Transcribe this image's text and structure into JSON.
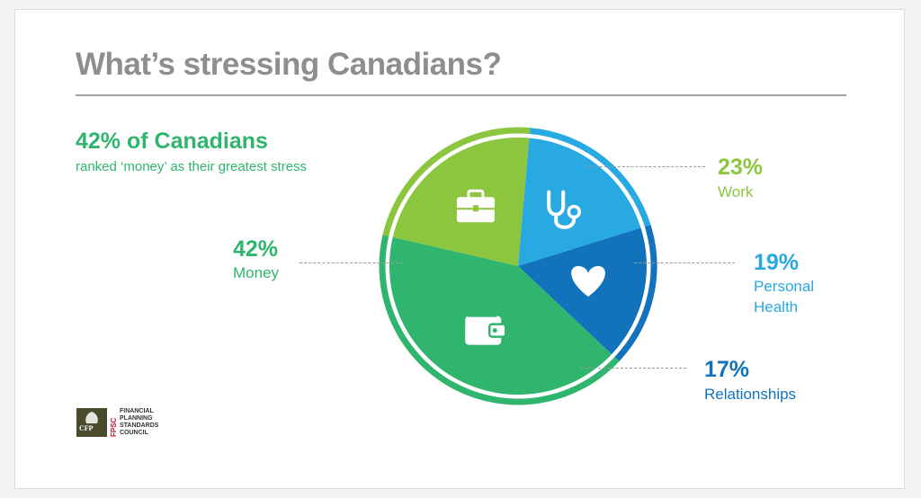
{
  "title": "What’s stressing Canadians?",
  "headline": {
    "stat": "42% of Canadians",
    "subtext": "ranked ‘money’ as their greatest stress",
    "color": "#2fb56e"
  },
  "chart_data": {
    "type": "pie",
    "title": "What’s stressing Canadians?",
    "unit": "%",
    "slices": [
      {
        "name": "Work",
        "value": 23,
        "value_label": "23%",
        "color": "#8cc63f",
        "icon": "briefcase-icon"
      },
      {
        "name": "Personal Health",
        "value": 19,
        "value_label": "19%",
        "color": "#29a9e1",
        "icon": "stethoscope-icon"
      },
      {
        "name": "Relationships",
        "value": 17,
        "value_label": "17%",
        "color": "#1272bb",
        "icon": "heart-icon"
      },
      {
        "name": "Money",
        "value": 42,
        "value_label": "42%",
        "color": "#2fb56e",
        "icon": "wallet-icon"
      }
    ]
  },
  "labels": {
    "work": {
      "pct": "23%",
      "line1": "Work"
    },
    "health": {
      "pct": "19%",
      "line1": "Personal",
      "line2": "Health"
    },
    "relationships": {
      "pct": "17%",
      "line1": "Relationships"
    },
    "money": {
      "pct": "42%",
      "line1": "Money"
    }
  },
  "logo": {
    "mark": "CFP",
    "acronym": "FPSC",
    "name_lines": [
      "FINANCIAL",
      "PLANNING",
      "STANDARDS",
      "COUNCIL"
    ]
  }
}
